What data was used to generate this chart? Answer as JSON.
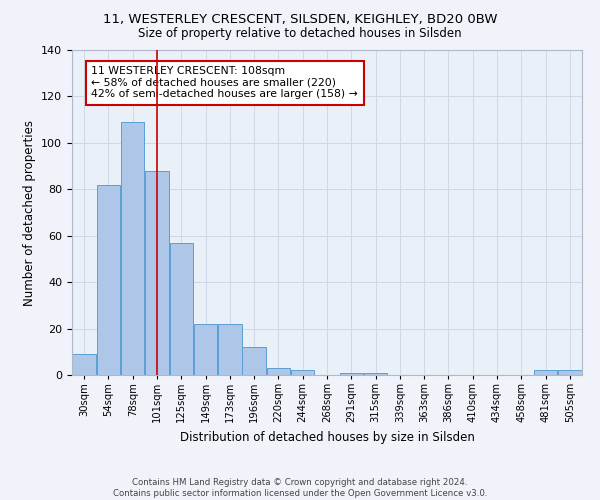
{
  "title": "11, WESTERLEY CRESCENT, SILSDEN, KEIGHLEY, BD20 0BW",
  "subtitle": "Size of property relative to detached houses in Silsden",
  "xlabel": "Distribution of detached houses by size in Silsden",
  "ylabel": "Number of detached properties",
  "footer_line1": "Contains HM Land Registry data © Crown copyright and database right 2024.",
  "footer_line2": "Contains public sector information licensed under the Open Government Licence v3.0.",
  "categories": [
    "30sqm",
    "54sqm",
    "78sqm",
    "101sqm",
    "125sqm",
    "149sqm",
    "173sqm",
    "196sqm",
    "220sqm",
    "244sqm",
    "268sqm",
    "291sqm",
    "315sqm",
    "339sqm",
    "363sqm",
    "386sqm",
    "410sqm",
    "434sqm",
    "458sqm",
    "481sqm",
    "505sqm"
  ],
  "values": [
    9,
    82,
    109,
    88,
    57,
    22,
    22,
    12,
    3,
    2,
    0,
    1,
    1,
    0,
    0,
    0,
    0,
    0,
    0,
    2,
    2
  ],
  "bar_color": "#aec6e8",
  "bar_edge_color": "#5a9fd4",
  "property_line_x": 3,
  "property_line_color": "#cc0000",
  "annotation_text": "11 WESTERLEY CRESCENT: 108sqm\n← 58% of detached houses are smaller (220)\n42% of semi-detached houses are larger (158) →",
  "annotation_box_color": "#ffffff",
  "annotation_box_edge_color": "#cc0000",
  "ylim": [
    0,
    140
  ],
  "yticks": [
    0,
    20,
    40,
    60,
    80,
    100,
    120,
    140
  ],
  "grid_color": "#d0d8e8",
  "bg_color": "#eaf0f8",
  "fig_bg_color": "#f0f4fa"
}
